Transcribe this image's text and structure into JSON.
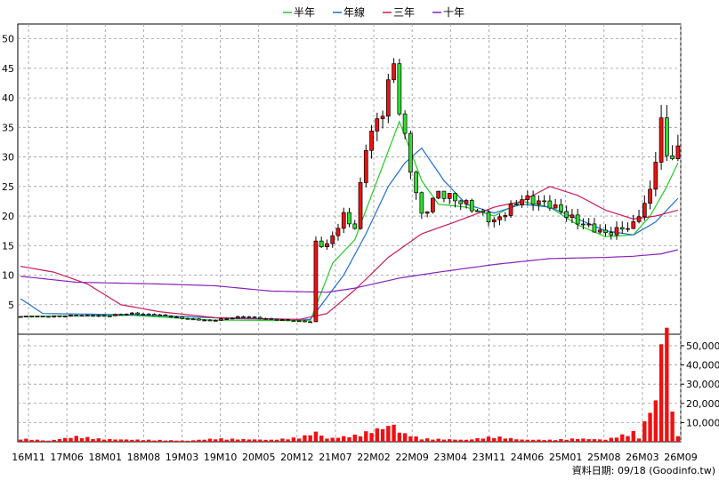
{
  "chart_data": {
    "type": "candlestick+volume",
    "legend": [
      {
        "name": "半年",
        "color": "#22cc22"
      },
      {
        "name": "年線",
        "color": "#1f6fd0"
      },
      {
        "name": "三年",
        "color": "#cc1a55"
      },
      {
        "name": "十年",
        "color": "#8822bb"
      }
    ],
    "price_axis": {
      "ylim": [
        0,
        52.5
      ],
      "ticks": [
        5,
        10,
        15,
        20,
        25,
        30,
        35,
        40,
        45,
        50
      ],
      "tick_labels": [
        "5",
        "10",
        "15",
        "20",
        "25",
        "30",
        "35",
        "40",
        "45",
        "50"
      ]
    },
    "volume_axis": {
      "ylim": [
        0,
        56000
      ],
      "ticks": [
        10000,
        20000,
        30000,
        40000,
        50000
      ],
      "tick_labels": [
        "10,000",
        "20,000",
        "30,000",
        "40,000",
        "50,000"
      ]
    },
    "x_ticks": [
      "16M11",
      "17M06",
      "18M01",
      "18M08",
      "19M03",
      "19M10",
      "20M05",
      "20M12",
      "21M07",
      "22M02",
      "22M09",
      "23M04",
      "23M11",
      "24M06",
      "25M01",
      "25M08",
      "26M03",
      "26M09"
    ],
    "n_bars": 119,
    "candles": {
      "anchors": [
        [
          0,
          3.0
        ],
        [
          5,
          3.0
        ],
        [
          8,
          3.1
        ],
        [
          10,
          3.2
        ],
        [
          15,
          3.1
        ],
        [
          20,
          3.5
        ],
        [
          25,
          3.2
        ],
        [
          30,
          2.6
        ],
        [
          34,
          2.3
        ],
        [
          40,
          3.0
        ],
        [
          45,
          2.5
        ],
        [
          52,
          2.1
        ],
        [
          53,
          15.5
        ],
        [
          55,
          15.0
        ],
        [
          58,
          20.0
        ],
        [
          60,
          18.0
        ],
        [
          62,
          32.0
        ],
        [
          65,
          38.0
        ],
        [
          67,
          46.0
        ],
        [
          68,
          38.0
        ],
        [
          70,
          28.0
        ],
        [
          72,
          20.0
        ],
        [
          75,
          24.0
        ],
        [
          80,
          22.0
        ],
        [
          85,
          19.0
        ],
        [
          90,
          23.0
        ],
        [
          95,
          22.0
        ],
        [
          100,
          19.0
        ],
        [
          105,
          17.0
        ],
        [
          110,
          18.5
        ],
        [
          113,
          24.0
        ],
        [
          114,
          30.0
        ],
        [
          115,
          36.0
        ],
        [
          116,
          30.0
        ],
        [
          118,
          31.0
        ]
      ]
    },
    "moving_averages": [
      {
        "name": "半年",
        "color": "#22cc22",
        "anchors": [
          [
            0,
            3.0
          ],
          [
            20,
            3.2
          ],
          [
            34,
            2.4
          ],
          [
            52,
            2.3
          ],
          [
            56,
            12.0
          ],
          [
            60,
            16.0
          ],
          [
            64,
            26.0
          ],
          [
            68,
            36.0
          ],
          [
            70,
            31.0
          ],
          [
            72,
            26.0
          ],
          [
            75,
            22.0
          ],
          [
            80,
            21.5
          ],
          [
            85,
            20.0
          ],
          [
            90,
            22.5
          ],
          [
            95,
            21.5
          ],
          [
            100,
            18.5
          ],
          [
            105,
            16.5
          ],
          [
            110,
            16.8
          ],
          [
            113,
            20.0
          ],
          [
            116,
            25.0
          ],
          [
            118,
            29.0
          ]
        ]
      },
      {
        "name": "年線",
        "color": "#1f6fd0",
        "anchors": [
          [
            0,
            6.0
          ],
          [
            4,
            3.5
          ],
          [
            20,
            3.3
          ],
          [
            40,
            2.6
          ],
          [
            52,
            2.5
          ],
          [
            58,
            10.0
          ],
          [
            62,
            17.0
          ],
          [
            66,
            25.0
          ],
          [
            69,
            29.0
          ],
          [
            72,
            31.5
          ],
          [
            76,
            26.0
          ],
          [
            80,
            22.0
          ],
          [
            85,
            20.5
          ],
          [
            90,
            22.0
          ],
          [
            95,
            21.5
          ],
          [
            100,
            19.5
          ],
          [
            105,
            17.5
          ],
          [
            110,
            16.8
          ],
          [
            114,
            19.0
          ],
          [
            118,
            23.0
          ]
        ]
      },
      {
        "name": "三年",
        "color": "#cc1a55",
        "anchors": [
          [
            0,
            11.5
          ],
          [
            6,
            10.5
          ],
          [
            12,
            8.5
          ],
          [
            18,
            5.0
          ],
          [
            25,
            3.8
          ],
          [
            35,
            2.8
          ],
          [
            50,
            2.5
          ],
          [
            55,
            3.5
          ],
          [
            60,
            7.5
          ],
          [
            66,
            13.0
          ],
          [
            72,
            17.0
          ],
          [
            78,
            19.0
          ],
          [
            85,
            21.5
          ],
          [
            90,
            22.5
          ],
          [
            95,
            25.0
          ],
          [
            100,
            23.5
          ],
          [
            105,
            21.0
          ],
          [
            110,
            19.5
          ],
          [
            114,
            20.0
          ],
          [
            118,
            21.0
          ]
        ]
      },
      {
        "name": "十年",
        "color": "#8822bb",
        "anchors": [
          [
            0,
            9.8
          ],
          [
            10,
            8.8
          ],
          [
            25,
            8.5
          ],
          [
            35,
            8.2
          ],
          [
            45,
            7.3
          ],
          [
            55,
            7.1
          ],
          [
            60,
            7.8
          ],
          [
            68,
            9.5
          ],
          [
            75,
            10.5
          ],
          [
            85,
            11.8
          ],
          [
            95,
            12.8
          ],
          [
            105,
            13.0
          ],
          [
            110,
            13.2
          ],
          [
            115,
            13.6
          ],
          [
            118,
            14.3
          ]
        ]
      }
    ],
    "volume": {
      "anchors": [
        [
          0,
          1500
        ],
        [
          5,
          500
        ],
        [
          10,
          2500
        ],
        [
          15,
          1200
        ],
        [
          20,
          1000
        ],
        [
          25,
          800
        ],
        [
          30,
          500
        ],
        [
          35,
          1500
        ],
        [
          40,
          1200
        ],
        [
          45,
          900
        ],
        [
          50,
          2000
        ],
        [
          52,
          3500
        ],
        [
          53,
          4500
        ],
        [
          55,
          1500
        ],
        [
          60,
          3000
        ],
        [
          65,
          6500
        ],
        [
          67,
          8000
        ],
        [
          68,
          4500
        ],
        [
          70,
          3000
        ],
        [
          72,
          1500
        ],
        [
          80,
          900
        ],
        [
          85,
          2500
        ],
        [
          90,
          1000
        ],
        [
          95,
          900
        ],
        [
          100,
          1500
        ],
        [
          105,
          1000
        ],
        [
          110,
          4500
        ],
        [
          111,
          2000
        ],
        [
          113,
          15500
        ],
        [
          114,
          18500
        ],
        [
          115,
          47000
        ],
        [
          116,
          55000
        ],
        [
          117,
          13500
        ],
        [
          118,
          3000
        ]
      ]
    }
  },
  "footer": {
    "source_label": "資料日期: 09/18  (Goodinfo.tw)"
  }
}
